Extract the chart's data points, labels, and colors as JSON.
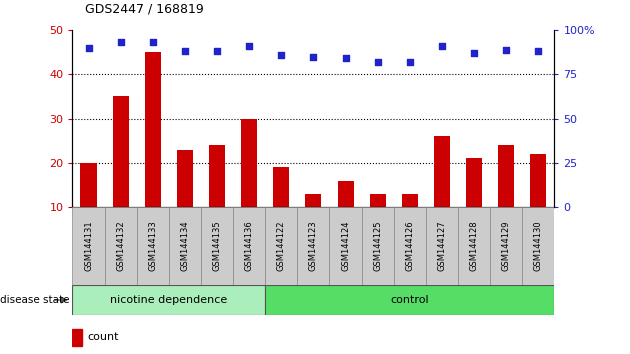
{
  "title": "GDS2447 / 168819",
  "categories": [
    "GSM144131",
    "GSM144132",
    "GSM144133",
    "GSM144134",
    "GSM144135",
    "GSM144136",
    "GSM144122",
    "GSM144123",
    "GSM144124",
    "GSM144125",
    "GSM144126",
    "GSM144127",
    "GSM144128",
    "GSM144129",
    "GSM144130"
  ],
  "count_values": [
    20,
    35,
    45,
    23,
    24,
    30,
    19,
    13,
    16,
    13,
    13,
    26,
    21,
    24,
    22
  ],
  "percentile_values": [
    90,
    93,
    93,
    88,
    88,
    91,
    86,
    85,
    84,
    82,
    82,
    91,
    87,
    89,
    88
  ],
  "group1_label": "nicotine dependence",
  "group2_label": "control",
  "group1_count": 6,
  "group2_count": 9,
  "left_ylim": [
    10,
    50
  ],
  "left_yticks": [
    10,
    20,
    30,
    40,
    50
  ],
  "right_ylim": [
    0,
    100
  ],
  "right_yticks": [
    0,
    25,
    50,
    75,
    100
  ],
  "bar_color": "#cc0000",
  "dot_color": "#2222cc",
  "group1_bg": "#aaeebb",
  "group2_bg": "#55dd66",
  "tick_bg": "#cccccc",
  "legend_count_color": "#cc0000",
  "legend_dot_color": "#2222cc",
  "disease_state_label": "disease state",
  "ylabel_left_color": "#cc0000",
  "ylabel_right_color": "#2222cc"
}
